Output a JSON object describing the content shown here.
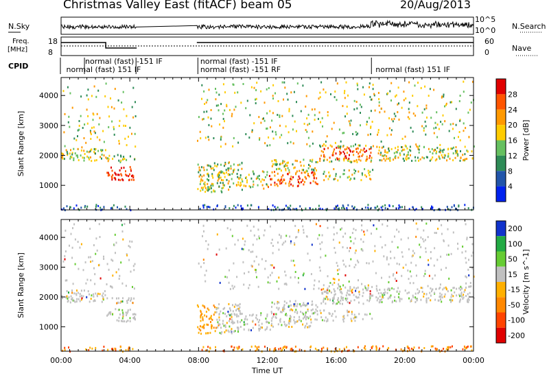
{
  "header": {
    "title": "Christmas Valley East (fitACF) beam 05",
    "date": "20/Aug/2013"
  },
  "status_panels": {
    "nsky_label": "N.Sky",
    "nsearch_label": "N.Search",
    "nsky_ticks": [
      "10^5",
      "10^0"
    ],
    "freq_label": [
      "Freq.",
      "[MHz]"
    ],
    "freq_ticks": [
      "18",
      "8"
    ],
    "nave_label": "Nave",
    "nave_ticks": [
      "60",
      "0"
    ],
    "cpid_label": "CPID",
    "cpid_segments": [
      {
        "text": "normal (fast) 151 IF",
        "row": 2
      },
      {
        "text": "normal (fast) -151 IF",
        "row": 1
      },
      {
        "text": "normal (fast) -151 IF",
        "row": 1
      },
      {
        "text": "normal (fast) -151 RF",
        "row": 2
      },
      {
        "text": "normal (fast) 151 IF",
        "row": 2
      }
    ]
  },
  "colors": {
    "power_scale": [
      "#0022ee",
      "#2255aa",
      "#2e8b57",
      "#66c060",
      "#ffcc00",
      "#ff9900",
      "#ff5500",
      "#e00000"
    ],
    "velocity_scale": [
      "#e00000",
      "#ff4400",
      "#ff8800",
      "#ffb000",
      "#c0c0c0",
      "#66cc33",
      "#22aa44",
      "#1133cc"
    ]
  },
  "chart_data": [
    {
      "type": "heatmap",
      "title": "",
      "xlabel": "",
      "ylabel": "Slant Range [km]",
      "ylim": [
        180,
        4600
      ],
      "yticks": [
        1000,
        2000,
        3000,
        4000
      ],
      "xlim_hours": [
        0,
        24
      ],
      "colorbar_label": "Power [dB]",
      "colorbar_ticks": [
        4,
        8,
        12,
        16,
        20,
        24,
        28
      ],
      "colorbar_range": [
        0,
        32
      ],
      "data_gaps_ut": [
        [
          4.3,
          7.8
        ]
      ]
    },
    {
      "type": "heatmap",
      "title": "",
      "xlabel": "Time UT",
      "ylabel": "Slant Range [km]",
      "ylim": [
        180,
        4600
      ],
      "yticks": [
        1000,
        2000,
        3000,
        4000
      ],
      "xticks": [
        "00:00",
        "04:00",
        "08:00",
        "12:00",
        "16:00",
        "20:00",
        "00:00"
      ],
      "xlim_hours": [
        0,
        24
      ],
      "colorbar_label": "Velocity [m s^-1]",
      "colorbar_ticks": [
        200,
        100,
        50,
        15,
        -15,
        -50,
        -100,
        -200
      ],
      "data_gaps_ut": [
        [
          4.3,
          7.8
        ]
      ]
    }
  ]
}
